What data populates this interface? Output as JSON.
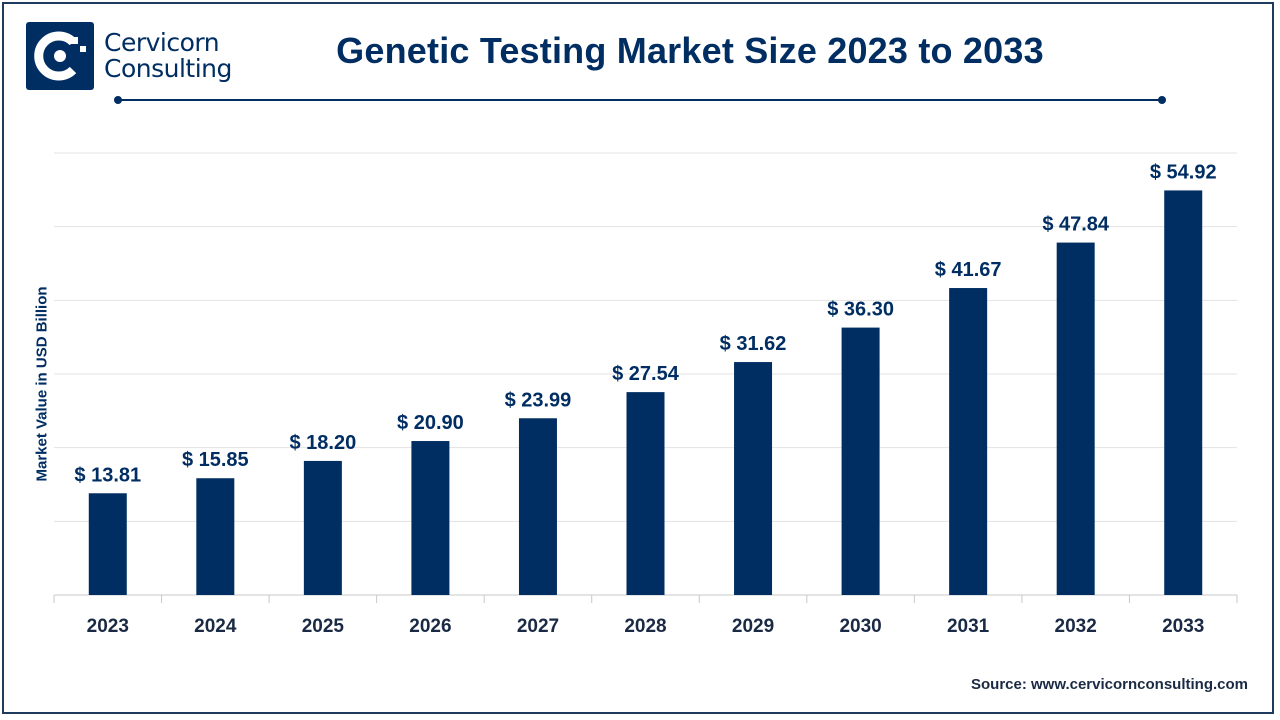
{
  "brand": {
    "line1": "Cervicorn",
    "line2": "Consulting",
    "color": "#002d62",
    "icon": "cervicorn-logo-icon"
  },
  "source_text": "Source: www.cervicornconsulting.com",
  "chart_data": {
    "type": "bar",
    "title": "Genetic Testing Market Size 2023 to 2033",
    "xlabel": "",
    "ylabel": "Market Value in USD Billion",
    "categories": [
      "2023",
      "2024",
      "2025",
      "2026",
      "2027",
      "2028",
      "2029",
      "2030",
      "2031",
      "2032",
      "2033"
    ],
    "values": [
      13.81,
      15.85,
      18.2,
      20.9,
      23.99,
      27.54,
      31.62,
      36.3,
      41.67,
      47.84,
      54.92
    ],
    "value_labels": [
      "$ 13.81",
      "$ 15.85",
      "$ 18.20",
      "$ 20.90",
      "$ 23.99",
      "$ 27.54",
      "$ 31.62",
      "$ 36.30",
      "$ 41.67",
      "$ 47.84",
      "$ 54.92"
    ],
    "ylim": [
      0,
      60
    ],
    "grid": true,
    "bar_color": "#002d62"
  }
}
